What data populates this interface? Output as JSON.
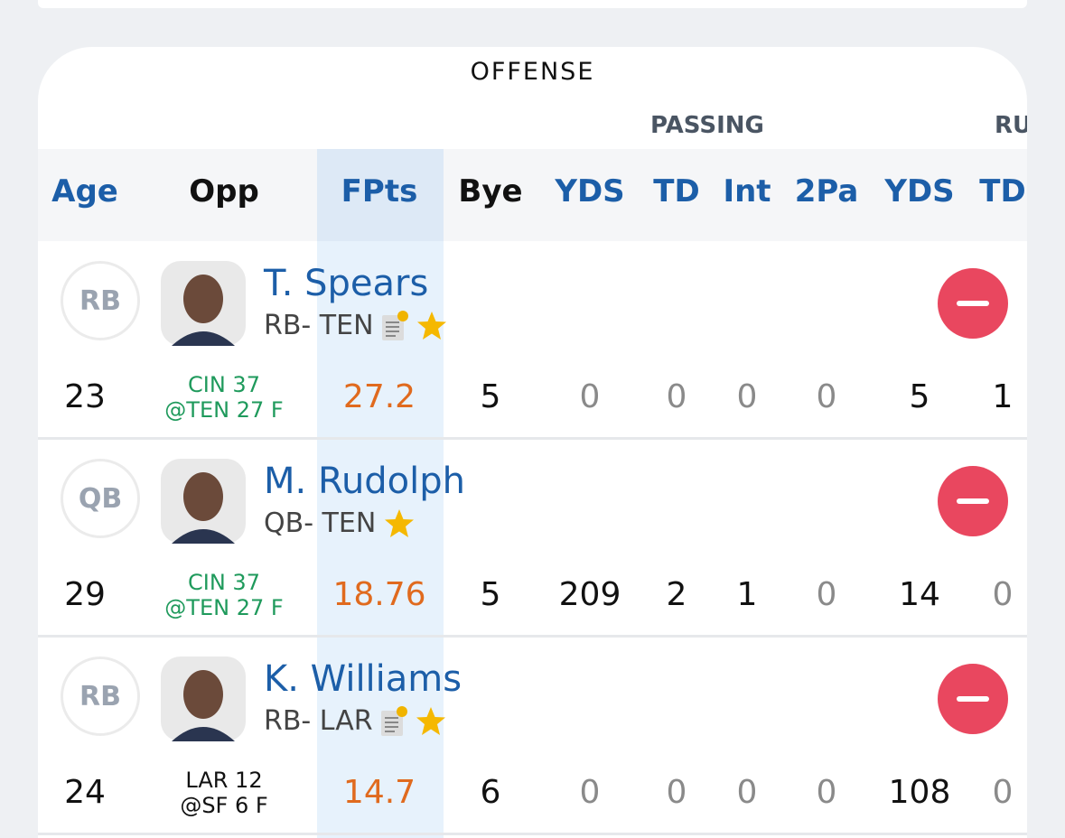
{
  "section_title": "OFFENSE",
  "group_headers": [
    "PASSING",
    "RU"
  ],
  "columns": [
    "Age",
    "Opp",
    "FPts",
    "Bye",
    "YDS",
    "TD",
    "Int",
    "2Pa",
    "YDS",
    "TD"
  ],
  "players": [
    {
      "position": "RB",
      "name": "T. Spears",
      "team": "RB- TEN",
      "age": 23,
      "opp": [
        "CIN 37",
        "@TEN 27 F"
      ],
      "fpts": 27.2,
      "bye": 5,
      "passing": [
        0,
        0,
        0,
        0
      ],
      "rushing": [
        5,
        1
      ]
    },
    {
      "position": "QB",
      "name": "M. Rudolph",
      "team": "QB- TEN",
      "age": 29,
      "opp": [
        "CIN 37",
        "@TEN 27 F"
      ],
      "fpts": 18.76,
      "bye": 5,
      "passing": [
        209,
        2,
        1,
        0
      ],
      "rushing": [
        14,
        0
      ]
    },
    {
      "position": "RB",
      "name": "K. Williams",
      "team": "RB- LAR",
      "age": 24,
      "opp": [
        "LAR 12",
        "@SF 6 F"
      ],
      "fpts": 14.7,
      "bye": 6,
      "passing": [
        0,
        0,
        0,
        0
      ],
      "rushing": [
        108,
        0
      ]
    }
  ]
}
